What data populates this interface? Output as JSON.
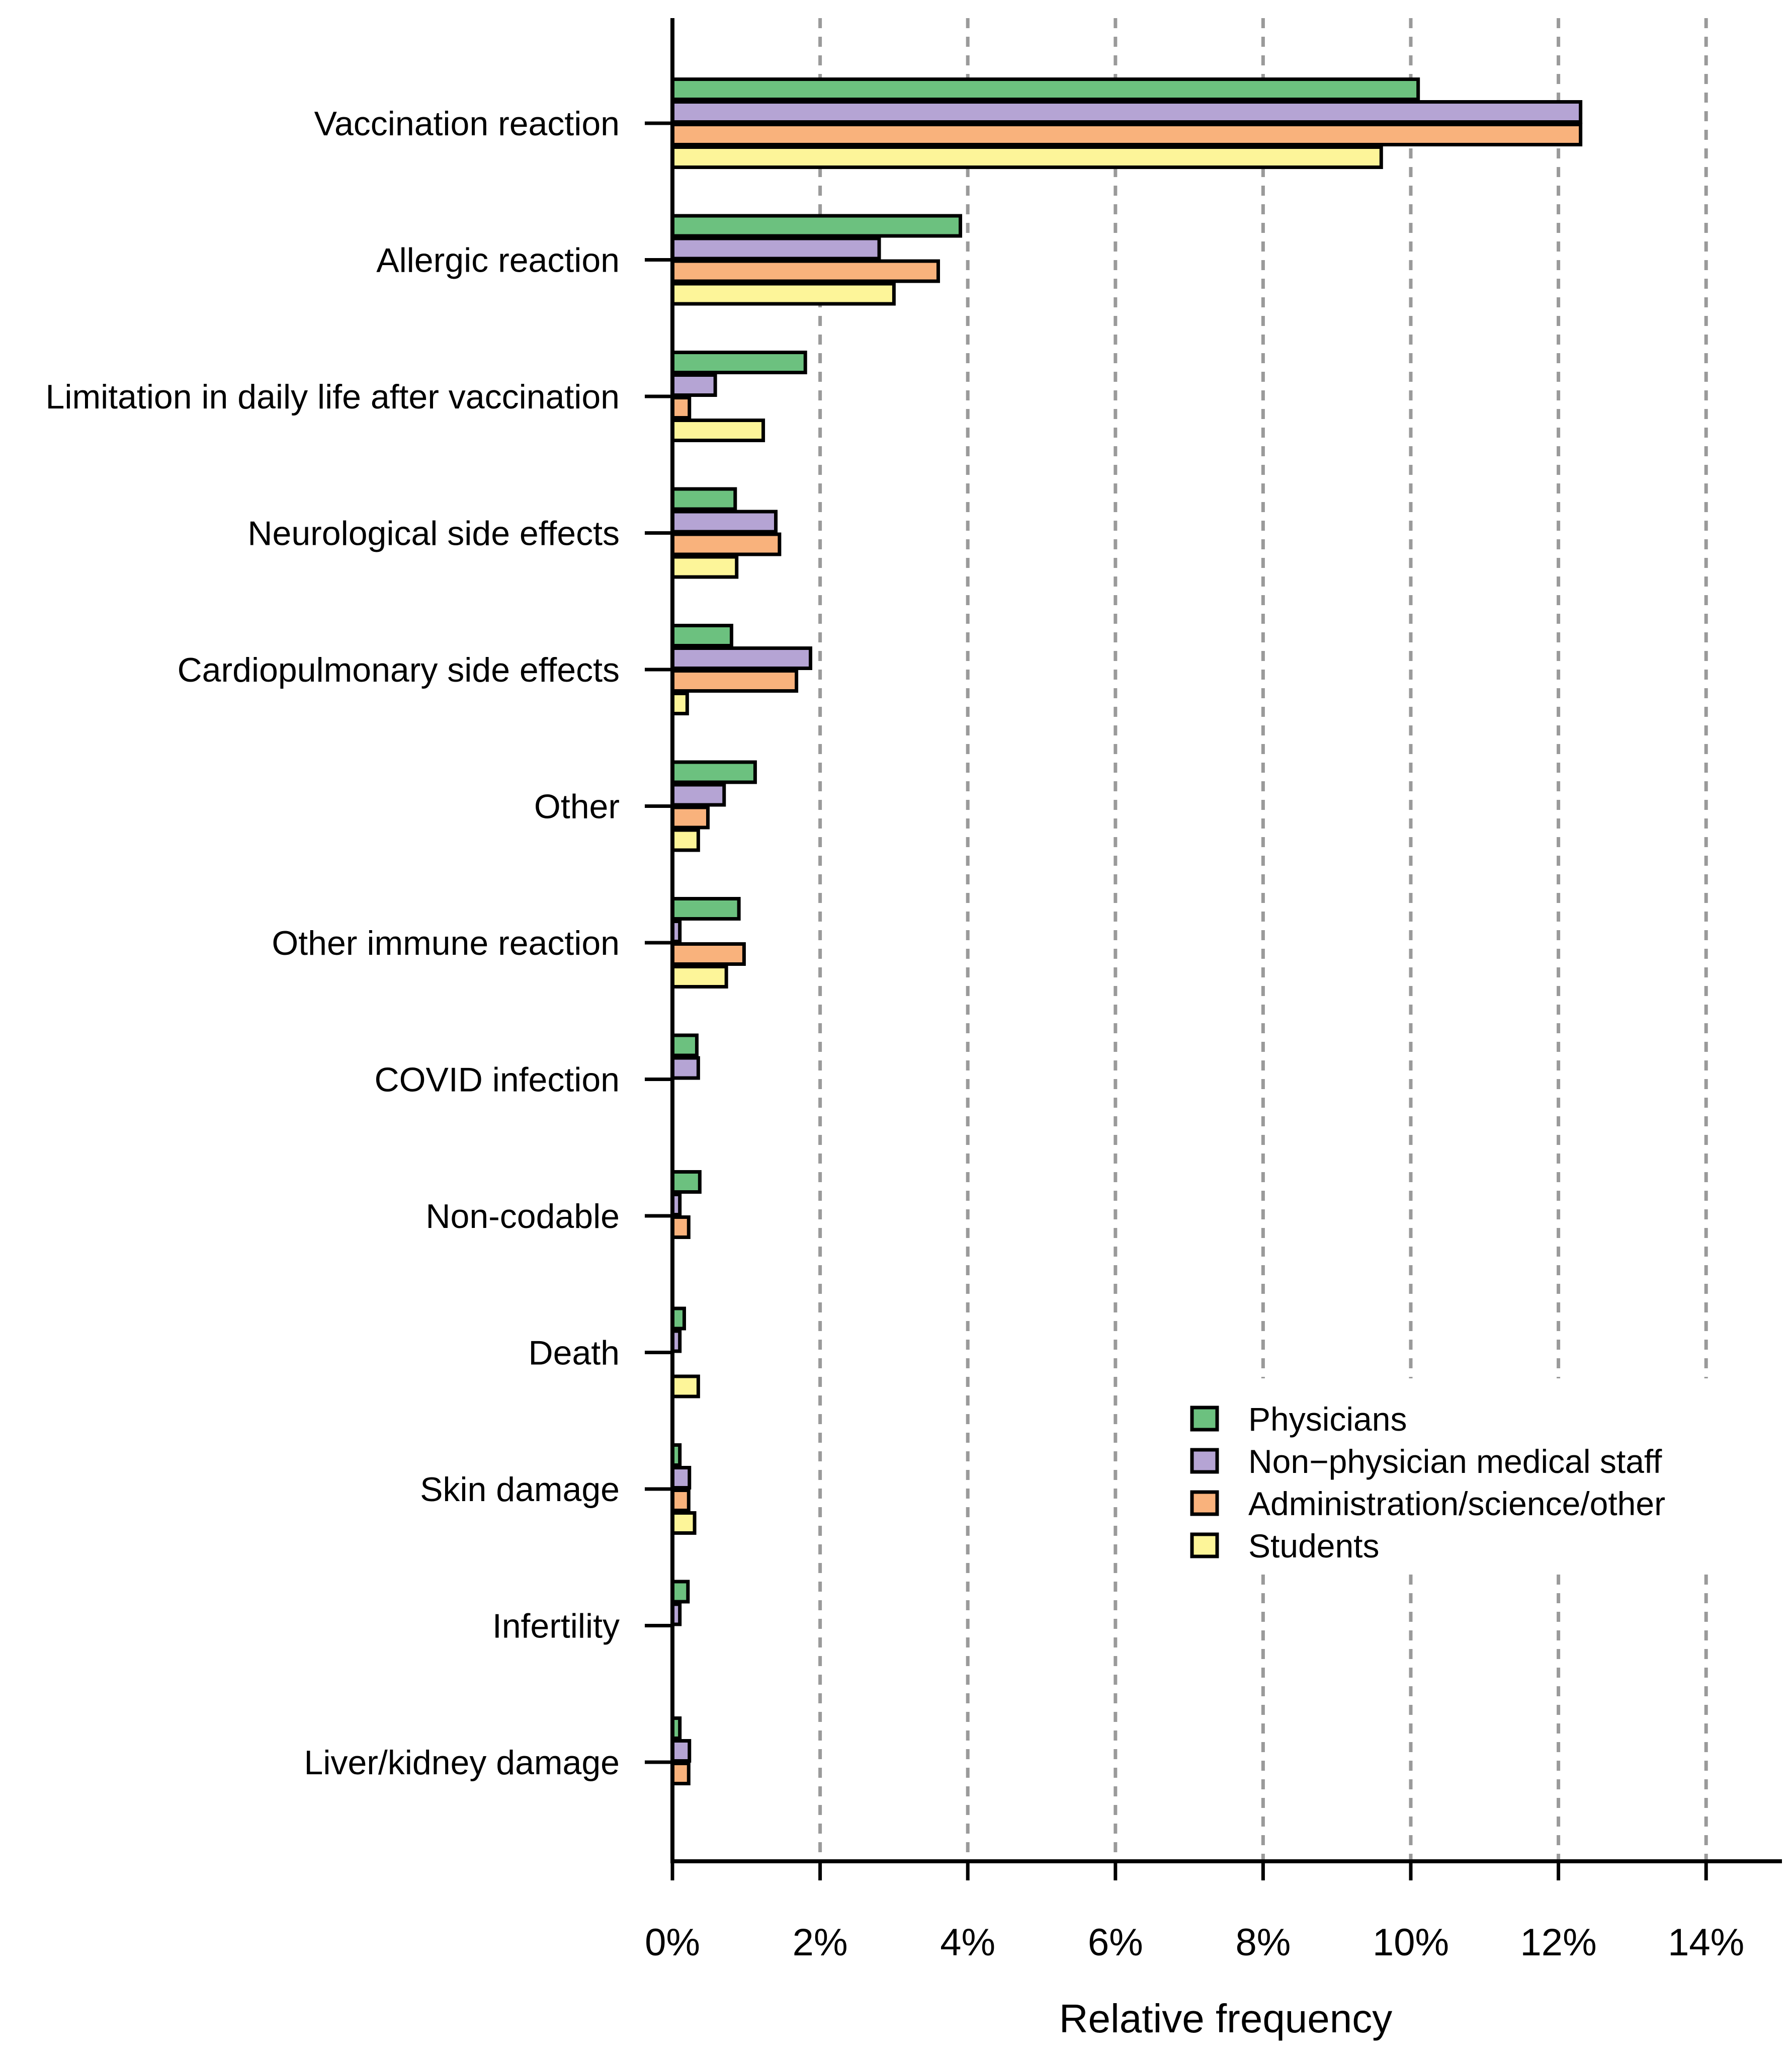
{
  "chart_data": {
    "type": "bar",
    "orientation": "horizontal",
    "title": "",
    "xlabel": "Relative frequency",
    "ylabel": "",
    "xlim": [
      0,
      15
    ],
    "x_ticks": [
      0,
      2,
      4,
      6,
      8,
      10,
      12,
      14
    ],
    "x_tick_labels": [
      "0%",
      "2%",
      "4%",
      "6%",
      "8%",
      "10%",
      "12%",
      "14%"
    ],
    "grid": "vertical dashed",
    "legend_position": "bottom-right",
    "categories": [
      "Vaccination reaction",
      "Allergic reaction",
      "Limitation in daily life after vaccination",
      "Neurological side effects",
      "Cardiopulmonary side effects",
      "Other",
      "Other immune reaction",
      "COVID infection",
      "Non-codable",
      "Death",
      "Skin damage",
      "Infertility",
      "Liver/kidney damage"
    ],
    "series": [
      {
        "name": "Physicians",
        "color": "#6cc17f",
        "values": [
          10.1,
          3.9,
          1.8,
          0.85,
          0.8,
          1.12,
          0.9,
          0.33,
          0.37,
          0.16,
          0.1,
          0.21,
          0.1
        ]
      },
      {
        "name": "Non−physician medical staff",
        "color": "#b5a4d4",
        "values": [
          12.3,
          2.8,
          0.58,
          1.4,
          1.87,
          0.7,
          0.1,
          0.35,
          0.1,
          0.1,
          0.23,
          0.1,
          0.23
        ]
      },
      {
        "name": "Administration/science/other",
        "color": "#f9b27c",
        "values": [
          12.3,
          3.6,
          0.23,
          1.45,
          1.68,
          0.48,
          0.97,
          0,
          0.22,
          0,
          0.22,
          0,
          0.22
        ]
      },
      {
        "name": "Students",
        "color": "#fdf599",
        "values": [
          9.6,
          3.0,
          1.23,
          0.87,
          0.2,
          0.35,
          0.73,
          0,
          0,
          0.35,
          0.3,
          0,
          0
        ]
      }
    ]
  }
}
